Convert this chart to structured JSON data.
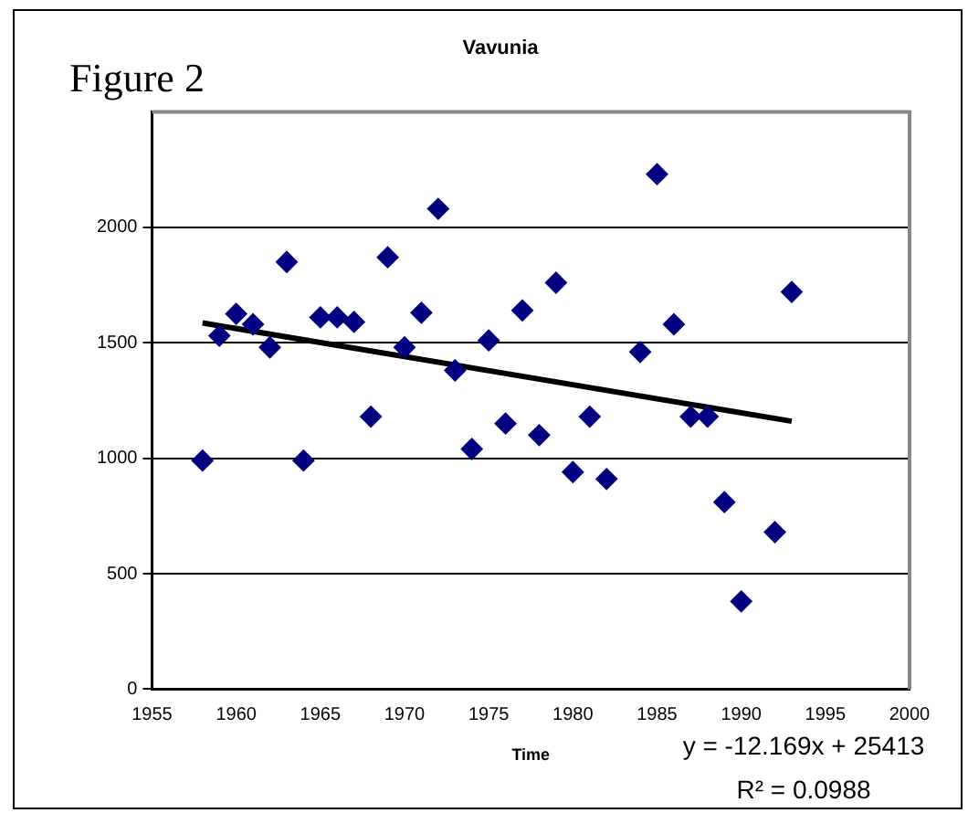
{
  "chart_data": {
    "type": "scatter",
    "title": "Vavunia",
    "xlabel": "Time",
    "annotations": [
      "Figure 2",
      "y = -12.169x + 25413",
      "R² = 0.0988"
    ],
    "xlim": [
      1955,
      2000
    ],
    "xticks": [
      1955,
      1960,
      1965,
      1970,
      1975,
      1980,
      1985,
      1990,
      1995,
      2000
    ],
    "ylim": [
      0,
      2500
    ],
    "yticks": [
      0,
      500,
      1000,
      1500,
      2000
    ],
    "grid": "y",
    "legend": false,
    "marker": "diamond",
    "series": [
      {
        "type": "scatter",
        "color": "#000080",
        "x": [
          1958,
          1959,
          1960,
          1961,
          1962,
          1963,
          1964,
          1965,
          1966,
          1967,
          1968,
          1969,
          1970,
          1971,
          1972,
          1973,
          1974,
          1975,
          1976,
          1977,
          1978,
          1979,
          1980,
          1981,
          1982,
          1984,
          1985,
          1986,
          1987,
          1988,
          1989,
          1990,
          1992,
          1993
        ],
        "values": [
          990,
          1530,
          1625,
          1580,
          1480,
          1850,
          990,
          1610,
          1610,
          1590,
          1180,
          1870,
          1480,
          1630,
          2080,
          1380,
          1040,
          1510,
          1150,
          1640,
          1100,
          1760,
          940,
          1180,
          910,
          1460,
          2230,
          1580,
          1180,
          1180,
          810,
          380,
          680,
          1720
        ]
      },
      {
        "type": "line",
        "color": "#000000",
        "marker": "none",
        "x": [
          1958,
          1993
        ],
        "values": [
          1586,
          1160
        ]
      }
    ]
  }
}
